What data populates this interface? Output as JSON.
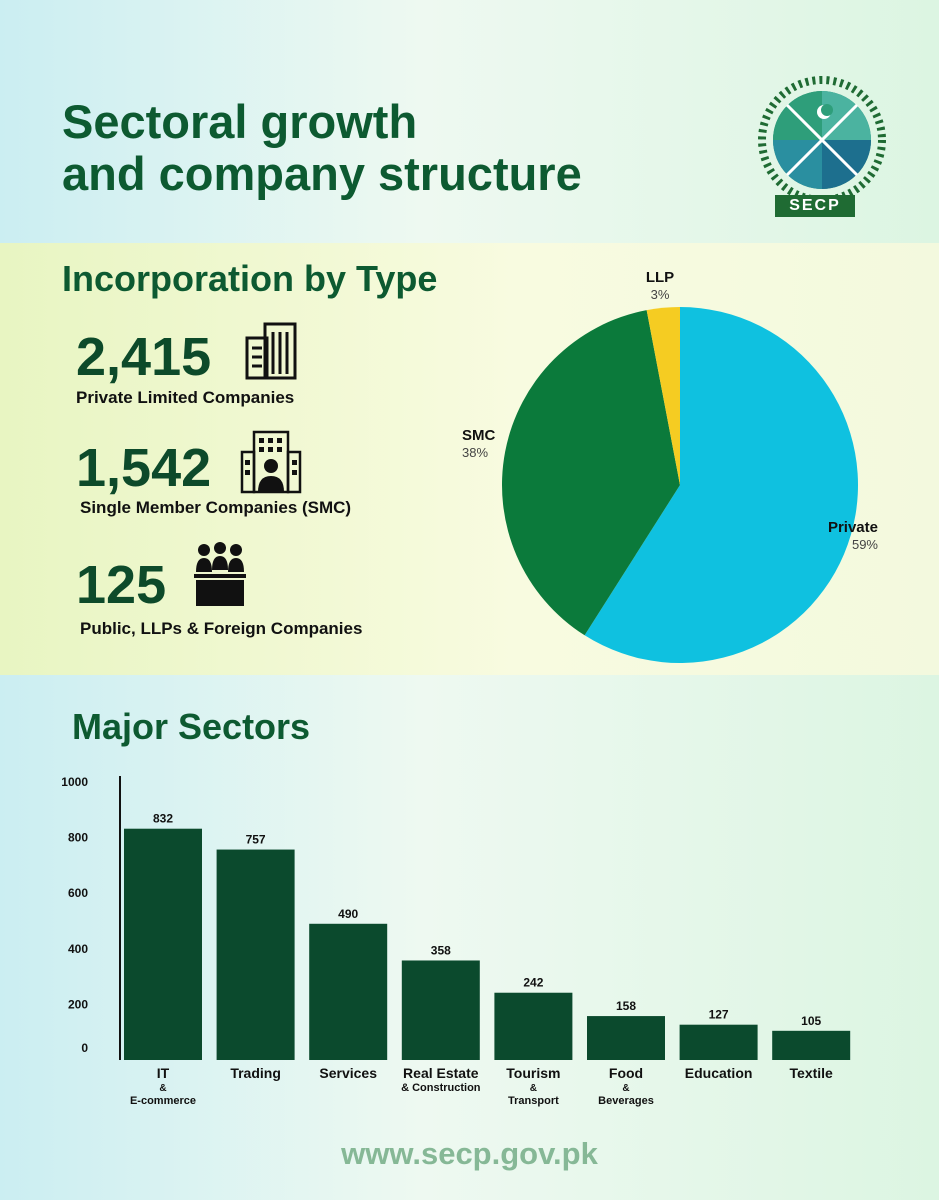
{
  "title": {
    "line1": "Sectoral growth",
    "line2": "and company structure"
  },
  "logo": {
    "text": "SECP",
    "name": "secp-emblem-icon"
  },
  "incorporation": {
    "heading": "Incorporation by Type",
    "stats": [
      {
        "value": "2,415",
        "label": "Private Limited Companies",
        "icon": "office-building-icon"
      },
      {
        "value": "1,542",
        "label": "Single Member Companies (SMC)",
        "icon": "person-building-icon"
      },
      {
        "value": "125",
        "label": "Public, LLPs & Foreign Companies",
        "icon": "group-desk-icon"
      }
    ]
  },
  "sectors": {
    "heading": "Major Sectors"
  },
  "footer": {
    "url": "www.secp.gov.pk"
  },
  "chart_data": [
    {
      "type": "pie",
      "slices": [
        {
          "name": "Private",
          "value": 59,
          "label": "59%",
          "color": "#0fc1e0"
        },
        {
          "name": "SMC",
          "value": 38,
          "label": "38%",
          "color": "#0b7a3b"
        },
        {
          "name": "LLP",
          "value": 3,
          "label": "3%",
          "color": "#f5cc22"
        }
      ]
    },
    {
      "type": "bar",
      "categories": [
        {
          "main": "IT",
          "sub1": "&",
          "sub2": "E-commerce"
        },
        {
          "main": "Trading",
          "sub1": "",
          "sub2": ""
        },
        {
          "main": "Services",
          "sub1": "",
          "sub2": ""
        },
        {
          "main": "Real Estate",
          "sub1": "& Construction",
          "sub2": ""
        },
        {
          "main": "Tourism",
          "sub1": "&",
          "sub2": "Transport"
        },
        {
          "main": "Food",
          "sub1": "&",
          "sub2": "Beverages"
        },
        {
          "main": "Education",
          "sub1": "",
          "sub2": ""
        },
        {
          "main": "Textile",
          "sub1": "",
          "sub2": ""
        }
      ],
      "values": [
        832,
        757,
        490,
        358,
        242,
        158,
        127,
        105
      ],
      "yticks": [
        "1000",
        "800",
        "600",
        "400",
        "200",
        "0"
      ],
      "ylim": [
        0,
        1000
      ],
      "bar_color": "#0b4a2d",
      "xlabel": "",
      "ylabel": ""
    }
  ]
}
